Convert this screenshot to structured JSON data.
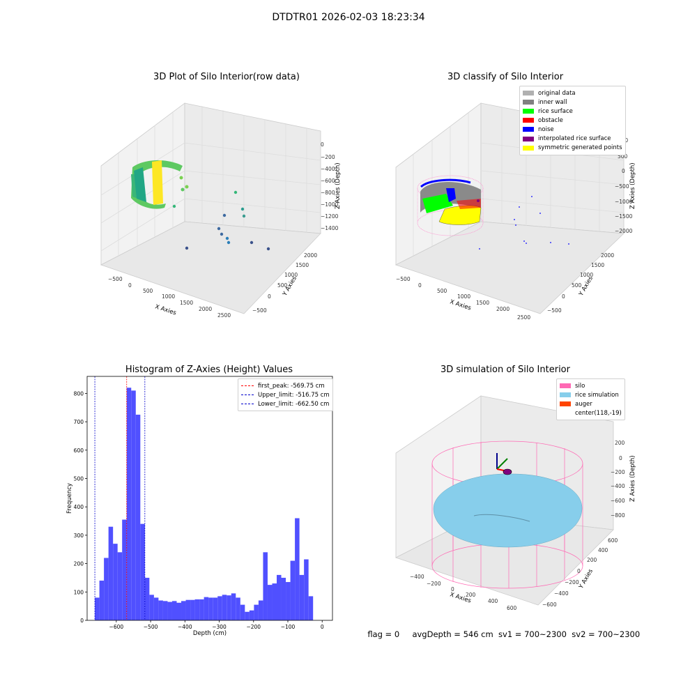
{
  "page_title": "DTDTR01 2026-02-03 18:23:34",
  "footer": {
    "flag": "flag = 0",
    "avg_depth": "avgDepth = 546 cm",
    "sv1": "sv1 = 700~2300",
    "sv2": "sv2 = 700~2300"
  },
  "colors": {
    "hist_bar": "#5050ff",
    "first_peak": "#ff0000",
    "limits": "#0000cc",
    "silo": "#ff69b4",
    "rice_sim": "#87ceeb",
    "auger": "#ff4500"
  },
  "chart_data": [
    {
      "type": "scatter3d",
      "title": "3D Plot of Silo Interior(row data)",
      "xlabel": "X Axies",
      "ylabel": "Y Axies",
      "zlabel": "Z Axies (Depth)",
      "x_ticks": [
        "−500",
        "0",
        "500",
        "1000",
        "1500",
        "2000",
        "2500"
      ],
      "y_ticks": [
        "−500",
        "0",
        "500",
        "1000",
        "1500",
        "2000"
      ],
      "z_ticks": [
        "−1400",
        "−1200",
        "−1000",
        "−800",
        "−600",
        "−400",
        "−200",
        "0"
      ],
      "colormap": "viridis"
    },
    {
      "type": "scatter3d",
      "title": "3D classify of Silo Interior",
      "xlabel": "X Axies",
      "ylabel": "Y Axies",
      "zlabel": "Z Axies (Depth)",
      "x_ticks": [
        "−500",
        "0",
        "500",
        "1000",
        "1500",
        "2000",
        "2500"
      ],
      "y_ticks": [
        "−500",
        "0",
        "500",
        "1000",
        "1500",
        "2000"
      ],
      "z_ticks": [
        "−2000",
        "−1500",
        "−1000",
        "−500",
        "0",
        "500",
        "1000"
      ],
      "legend_position": "top-right",
      "legend": [
        {
          "name": "original data",
          "color": "#b0b0b0"
        },
        {
          "name": "inner wall",
          "color": "#808080"
        },
        {
          "name": "rice surface",
          "color": "#00ff00"
        },
        {
          "name": "obstacle",
          "color": "#ff0000"
        },
        {
          "name": "noise",
          "color": "#0000ff"
        },
        {
          "name": "interpolated rice surface",
          "color": "#800080"
        },
        {
          "name": "symmetric generated points",
          "color": "#ffff00"
        }
      ]
    },
    {
      "type": "bar",
      "title": "Histogram of Z-Axies (Height) Values",
      "xlabel": "Depth (cm)",
      "ylabel": "Frequency",
      "xlim": [
        -685,
        30
      ],
      "ylim": [
        0,
        860
      ],
      "x_ticks": [
        -600,
        -500,
        -400,
        -300,
        -200,
        -100,
        0
      ],
      "y_ticks": [
        0,
        100,
        200,
        300,
        400,
        500,
        600,
        700,
        800
      ],
      "bin_start": -662.5,
      "bin_width": 13.25,
      "values": [
        80,
        140,
        220,
        330,
        270,
        240,
        355,
        820,
        810,
        725,
        340,
        150,
        90,
        80,
        70,
        68,
        65,
        68,
        62,
        68,
        72,
        72,
        74,
        74,
        82,
        80,
        80,
        85,
        90,
        88,
        95,
        80,
        55,
        30,
        35,
        55,
        70,
        240,
        125,
        130,
        160,
        150,
        135,
        210,
        360,
        160,
        215,
        85
      ],
      "lines": [
        {
          "name": "first_peak: -569.75 cm",
          "x": -569.75,
          "color": "#ff0000"
        },
        {
          "name": "Upper_limit: -516.75 cm",
          "x": -516.75,
          "color": "#0000cc"
        },
        {
          "name": "Lower_limit: -662.50 cm",
          "x": -662.5,
          "color": "#0000cc"
        }
      ],
      "legend_position": "top-right"
    },
    {
      "type": "surface3d",
      "title": "3D simulation of Silo Interior",
      "xlabel": "X Axies",
      "ylabel": "Y Axies",
      "zlabel": "Z Axies (Depth)",
      "x_ticks": [
        "−400",
        "−200",
        "0",
        "200",
        "400",
        "600"
      ],
      "y_ticks": [
        "−600",
        "−400",
        "−200",
        "0",
        "200",
        "400",
        "600"
      ],
      "z_ticks": [
        "−800",
        "−600",
        "−400",
        "−200",
        "0",
        "200"
      ],
      "legend_position": "top-right",
      "legend": [
        {
          "name": "silo",
          "color": "#ff69b4"
        },
        {
          "name": "rice simulation",
          "color": "#87ceeb"
        },
        {
          "name": "auger",
          "color": "#ff4500"
        },
        {
          "name": "center(118,-19)",
          "color": ""
        }
      ]
    }
  ]
}
